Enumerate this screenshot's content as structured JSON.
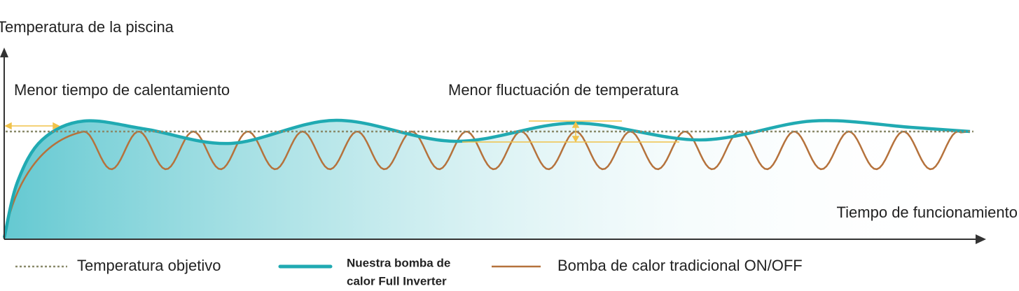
{
  "y_axis_label": "Temperatura de la piscina",
  "x_axis_label": "Tiempo de funcionamiento",
  "annotations": [
    "Menor tiempo de calentamiento",
    "Menor fluctuación de temperatura"
  ],
  "legend": {
    "target": "Temperatura objetivo",
    "inverter": [
      "Nuestra bomba de",
      "calor Full Inverter"
    ],
    "traditional": "Bomba de calor tradicional ON/OFF"
  }
}
